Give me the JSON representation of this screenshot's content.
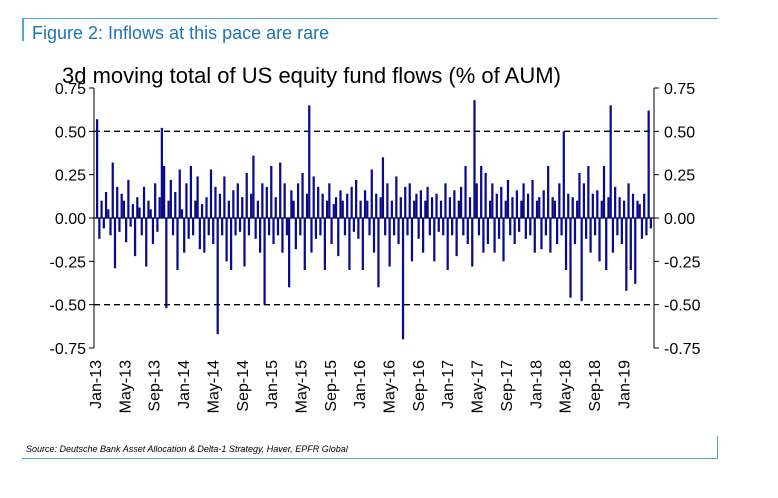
{
  "figure": {
    "label": "Figure 2: Inflows at this pace are rare",
    "source": "Source: Deutsche Bank Asset Allocation & Delta-1 Strategy, Haver, EPFR Global"
  },
  "colors": {
    "accent": "#4aa6e0",
    "label": "#1f73b7",
    "series": "#0a0a8c"
  },
  "chart_data": {
    "type": "bar",
    "title": "3d moving total of US equity fund flows (% of AUM)",
    "ylim": [
      -0.75,
      0.75
    ],
    "yticks": [
      "0.75",
      "0.50",
      "0.25",
      "0.00",
      "-0.25",
      "-0.50",
      "-0.75"
    ],
    "reference_lines": [
      0.5,
      -0.5,
      0
    ],
    "x_tick_labels": [
      "Jan-13",
      "May-13",
      "Sep-13",
      "Jan-14",
      "May-14",
      "Sep-14",
      "Jan-15",
      "May-15",
      "Sep-15",
      "Jan-16",
      "May-16",
      "Sep-16",
      "Jan-17",
      "May-17",
      "Sep-17",
      "Jan-18",
      "May-18",
      "Sep-18",
      "Jan-19"
    ],
    "series": [
      {
        "values": [
          0.57,
          -0.12,
          0.1,
          -0.06,
          0.15,
          0.05,
          -0.1,
          0.32,
          -0.29,
          0.18,
          -0.08,
          0.14,
          0.1,
          -0.14,
          0.22,
          -0.05,
          0.08,
          -0.22,
          0.12,
          0.06,
          -0.1,
          0.18,
          -0.28,
          0.1,
          0.05,
          -0.15,
          0.2,
          -0.08,
          0.12,
          0.52,
          0.3,
          -0.52,
          0.1,
          0.22,
          -0.1,
          0.15,
          -0.3,
          0.28,
          0.05,
          -0.2,
          0.2,
          -0.12,
          0.3,
          -0.1,
          0.1,
          0.24,
          -0.18,
          0.08,
          -0.2,
          0.12,
          -0.1,
          0.28,
          -0.15,
          0.18,
          -0.67,
          0.14,
          -0.1,
          0.24,
          -0.25,
          0.1,
          -0.3,
          0.16,
          -0.1,
          0.2,
          -0.08,
          0.12,
          -0.28,
          0.26,
          -0.1,
          0.14,
          0.36,
          -0.12,
          0.1,
          -0.2,
          0.2,
          -0.5,
          0.18,
          -0.1,
          0.3,
          -0.15,
          0.12,
          -0.1,
          0.32,
          -0.2,
          0.2,
          -0.1,
          -0.4,
          0.16,
          0.1,
          -0.18,
          0.2,
          -0.1,
          0.26,
          -0.3,
          0.14,
          0.65,
          -0.2,
          0.24,
          -0.12,
          0.18,
          -0.1,
          0.14,
          -0.3,
          0.1,
          0.2,
          -0.15,
          0.08,
          0.12,
          -0.22,
          0.16,
          0.1,
          -0.1,
          0.14,
          -0.3,
          0.18,
          -0.08,
          0.22,
          -0.12,
          0.1,
          -0.3,
          0.16,
          0.1,
          -0.1,
          0.28,
          -0.2,
          0.14,
          -0.4,
          0.12,
          0.35,
          -0.1,
          0.2,
          -0.28,
          0.1,
          -0.1,
          0.24,
          -0.15,
          0.12,
          -0.7,
          0.18,
          -0.1,
          0.2,
          -0.25,
          0.1,
          0.14,
          -0.12,
          0.16,
          -0.2,
          0.1,
          0.18,
          -0.1,
          0.12,
          -0.25,
          0.14,
          -0.08,
          0.1,
          -0.1,
          0.2,
          -0.3,
          0.12,
          -0.1,
          0.16,
          -0.22,
          0.1,
          0.18,
          -0.1,
          0.3,
          -0.15,
          0.12,
          -0.28,
          0.68,
          0.2,
          -0.1,
          0.3,
          -0.2,
          0.26,
          -0.15,
          0.1,
          0.2,
          -0.2,
          0.14,
          -0.12,
          0.18,
          -0.25,
          0.1,
          0.22,
          -0.1,
          0.12,
          -0.15,
          0.16,
          -0.08,
          0.1,
          0.2,
          -0.12,
          0.14,
          -0.1,
          0.22,
          -0.2,
          0.1,
          0.12,
          -0.18,
          0.16,
          -0.1,
          0.3,
          -0.2,
          0.12,
          0.1,
          -0.15,
          0.2,
          -0.1,
          0.5,
          -0.3,
          0.14,
          -0.46,
          0.12,
          -0.15,
          0.1,
          0.26,
          -0.48,
          0.2,
          -0.12,
          0.3,
          -0.2,
          0.14,
          -0.1,
          0.16,
          -0.25,
          0.1,
          0.3,
          -0.3,
          0.12,
          0.65,
          -0.2,
          0.18,
          -0.1,
          0.12,
          -0.15,
          0.1,
          -0.42,
          0.2,
          -0.3,
          0.14,
          -0.38,
          0.1,
          0.08,
          -0.12,
          0.14,
          -0.1,
          0.62,
          -0.06
        ]
      }
    ]
  }
}
